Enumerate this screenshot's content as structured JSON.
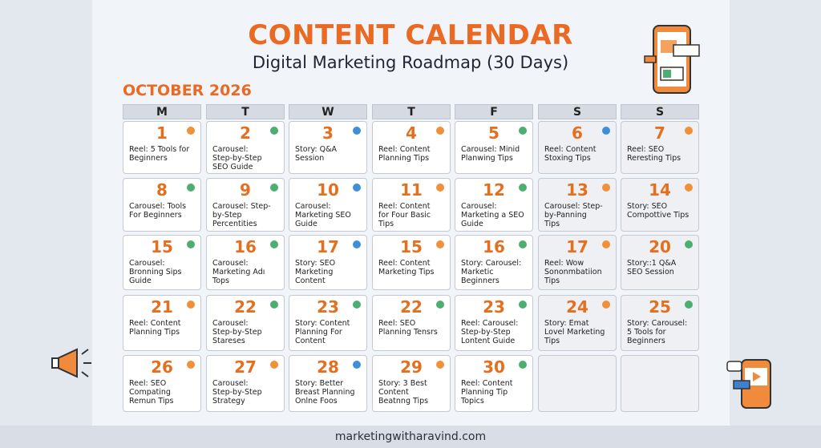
{
  "header": {
    "title": "CONTENT CALENDAR",
    "subtitle": "Digital Marketing Roadmap (30 Days)",
    "month": "OCTOBER 2026"
  },
  "calendar": {
    "weekdays": [
      "M",
      "T",
      "W",
      "T",
      "F",
      "S",
      "S"
    ],
    "weeks": [
      [
        {
          "day": 1,
          "dot": "#f0913a",
          "lines": [
            "Reel: 5 Tools for",
            "Beginners"
          ]
        },
        {
          "day": 2,
          "dot": "#4caf70",
          "lines": [
            "Carousel:",
            "Step-by-Step",
            "SEO Guide"
          ]
        },
        {
          "day": 3,
          "dot": "#3f8fd8",
          "lines": [
            "Story: Q&A",
            "Session"
          ]
        },
        {
          "day": 4,
          "dot": "#f0913a",
          "lines": [
            "Reel: Content",
            "Planning Tips"
          ]
        },
        {
          "day": 5,
          "dot": "#4caf70",
          "lines": [
            "Carousel: Minid",
            "Planwing Tips"
          ]
        },
        {
          "day": 6,
          "dot": "#3f8fd8",
          "lines": [
            "Reel: Content",
            "Stoxing Tips"
          ]
        },
        {
          "day": 7,
          "dot": "#f0913a",
          "lines": [
            "Reel: SEO",
            "Reresting Tips"
          ]
        }
      ],
      [
        {
          "day": 8,
          "dot": "#4caf70",
          "lines": [
            "Carousel: Tools",
            "For Beginners"
          ]
        },
        {
          "day": 9,
          "dot": "#4caf70",
          "lines": [
            "Carousel: Step-",
            "by-Step",
            "Percentities"
          ]
        },
        {
          "day": 10,
          "dot": "#3f8fd8",
          "lines": [
            "Carousel:",
            "Marketing SEO",
            "Guide"
          ]
        },
        {
          "day": 11,
          "dot": "#f0913a",
          "lines": [
            "Reel: Content",
            "for Four Basic",
            "Tips"
          ]
        },
        {
          "day": 12,
          "dot": "#4caf70",
          "lines": [
            "Carousel:",
            "Marketing a SEO",
            "Guide"
          ]
        },
        {
          "day": 13,
          "dot": "#f0913a",
          "lines": [
            "Carousel: Step-",
            "by-Panning",
            "Tips"
          ]
        },
        {
          "day": 14,
          "dot": "#f0913a",
          "lines": [
            "Story: SEO",
            "Compottive Tips"
          ]
        }
      ],
      [
        {
          "day": 15,
          "dot": "#4caf70",
          "lines": [
            "Carousel:",
            "Bronning Sips",
            "Guide"
          ]
        },
        {
          "day": 16,
          "dot": "#4caf70",
          "lines": [
            "Carousel:",
            "Marketing Adı",
            "Tops"
          ]
        },
        {
          "day": 17,
          "dot": "#3f8fd8",
          "lines": [
            "Story: SEO",
            "Marketing",
            "Content"
          ]
        },
        {
          "day": 15,
          "dot": "#f0913a",
          "lines": [
            "Reel: Content",
            "Marketing Tips"
          ]
        },
        {
          "day": 16,
          "dot": "#4caf70",
          "lines": [
            "Story: Carousel:",
            "Marketic",
            "Beginners"
          ]
        },
        {
          "day": 17,
          "dot": "#f0913a",
          "lines": [
            "Reel: Wow",
            "Sononmbatiion",
            "Tips"
          ]
        },
        {
          "day": 20,
          "dot": "#4caf70",
          "lines": [
            "Story::1 Q&A",
            "SEO Session"
          ]
        }
      ],
      [
        {
          "day": 21,
          "dot": "#f0913a",
          "lines": [
            "Reel: Content",
            "Planning Tips"
          ]
        },
        {
          "day": 22,
          "dot": "#4caf70",
          "lines": [
            "Carousel:",
            "Step-by-Step",
            "Stareses"
          ]
        },
        {
          "day": 23,
          "dot": "#4caf70",
          "lines": [
            "Story: Content",
            "Planning For",
            "Content"
          ]
        },
        {
          "day": 22,
          "dot": "#4caf70",
          "lines": [
            "Reel: SEO",
            "Planning Tensrs"
          ]
        },
        {
          "day": 23,
          "dot": "#4caf70",
          "lines": [
            "Reel: Carousel:",
            "Step-by-Step",
            "Lontent Guide"
          ]
        },
        {
          "day": 24,
          "dot": "#f0913a",
          "lines": [
            "Story: Emat",
            "Lovel Marketing",
            "Tips"
          ]
        },
        {
          "day": 25,
          "dot": "#4caf70",
          "lines": [
            "Story: Carousel:",
            "5 Tools for",
            "Beginners"
          ]
        }
      ],
      [
        {
          "day": 26,
          "dot": "#f0913a",
          "lines": [
            "Reel: SEO",
            "Compating",
            "Remun Tips"
          ]
        },
        {
          "day": 27,
          "dot": "#f0913a",
          "lines": [
            "Carousel:",
            "Step-by-Step",
            "Strategy"
          ]
        },
        {
          "day": 28,
          "dot": "#3f8fd8",
          "lines": [
            "Story: Better",
            "Breast Planning",
            "Onlne Foos"
          ]
        },
        {
          "day": 29,
          "dot": "#f0913a",
          "lines": [
            "Story: 3 Best",
            "Content",
            "Beatnng Tips"
          ]
        },
        {
          "day": 30,
          "dot": "#4caf70",
          "lines": [
            "Reel: Content",
            "Planning Tip",
            "Topics"
          ]
        }
      ]
    ]
  },
  "footer": "marketingwitharavind.com"
}
